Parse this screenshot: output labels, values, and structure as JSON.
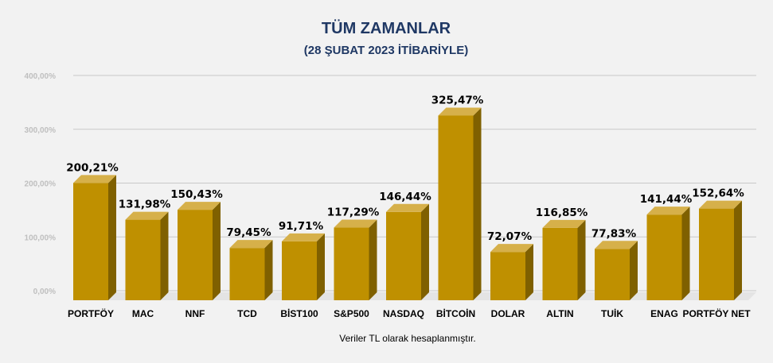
{
  "chart_data": {
    "type": "bar",
    "title": "TÜM ZAMANLAR",
    "subtitle": "(28 ŞUBAT 2023 İTİBARİYLE)",
    "categories": [
      "PORTFÖY",
      "MAC",
      "NNF",
      "TCD",
      "BİST100",
      "S&P500",
      "NASDAQ",
      "BİTCOİN",
      "DOLAR",
      "ALTIN",
      "TUİK",
      "ENAG",
      "PORTFÖY NET"
    ],
    "values": [
      200.21,
      131.98,
      150.43,
      79.45,
      91.71,
      117.29,
      146.44,
      325.47,
      72.07,
      116.85,
      77.83,
      141.44,
      152.64
    ],
    "value_labels": [
      "200,21%",
      "131,98%",
      "150,43%",
      "79,45%",
      "91,71%",
      "117,29%",
      "146,44%",
      "325,47%",
      "72,07%",
      "116,85%",
      "77,83%",
      "141,44%",
      "152,64%"
    ],
    "yticks": [
      0,
      100,
      200,
      300,
      400
    ],
    "ytick_labels": [
      "0,00%",
      "100,00%",
      "200,00%",
      "300,00%",
      "400,00%"
    ],
    "ylim": [
      0,
      400
    ],
    "grid": true,
    "xlabel": "",
    "ylabel": "",
    "footnote": "Veriler TL olarak hesaplanmıştır."
  },
  "colors": {
    "background": "#f2f2f2",
    "title": "#1f3864",
    "bar_front": "#bf9000",
    "bar_side": "#7f6000",
    "bar_top": "#d6b04a",
    "gridline": "#c8c8c8",
    "tick_label": "#bfbfbf",
    "text": "#000000"
  }
}
